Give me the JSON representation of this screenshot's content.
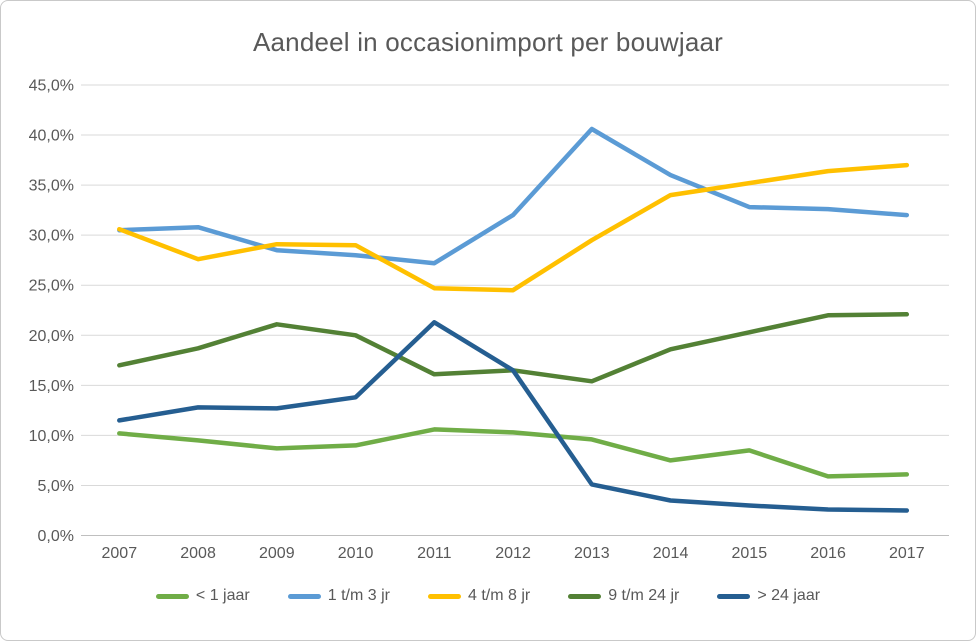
{
  "chart_data": {
    "type": "line",
    "title": "Aandeel in occasionimport per bouwjaar",
    "xlabel": "",
    "ylabel": "",
    "categories": [
      "2007",
      "2008",
      "2009",
      "2010",
      "2011",
      "2012",
      "2013",
      "2014",
      "2015",
      "2016",
      "2017"
    ],
    "series": [
      {
        "key": "minder-dan-1-jaar",
        "name": "< 1 jaar",
        "color": "#70AD47",
        "values": [
          10.2,
          9.5,
          8.7,
          9.0,
          10.6,
          10.3,
          9.6,
          7.5,
          8.5,
          5.9,
          6.1
        ]
      },
      {
        "key": "1-tm-3-jr",
        "name": "1 t/m 3 jr",
        "color": "#5B9BD5",
        "values": [
          30.5,
          30.8,
          28.5,
          28.0,
          27.2,
          32.0,
          40.6,
          36.0,
          32.8,
          32.6,
          32.0
        ]
      },
      {
        "key": "4-tm-8-jr",
        "name": "4 t/m 8 jr",
        "color": "#FFC000",
        "values": [
          30.6,
          27.6,
          29.1,
          29.0,
          24.7,
          24.5,
          29.5,
          34.0,
          35.2,
          36.4,
          37.0
        ]
      },
      {
        "key": "9-tm-24-jr",
        "name": "9 t/m 24 jr",
        "color": "#538135",
        "values": [
          17.0,
          18.7,
          21.1,
          20.0,
          16.1,
          16.5,
          15.4,
          18.6,
          20.3,
          22.0,
          22.1
        ]
      },
      {
        "key": "meer-dan-24-jaar",
        "name": "> 24 jaar",
        "color": "#255E91",
        "values": [
          11.5,
          12.8,
          12.7,
          13.8,
          21.3,
          16.5,
          5.1,
          3.5,
          3.0,
          2.6,
          2.5
        ]
      }
    ],
    "ylim": [
      0,
      45
    ],
    "ytick_step": 5,
    "ytick_labels": [
      "0,0%",
      "5,0%",
      "10,0%",
      "15,0%",
      "20,0%",
      "25,0%",
      "30,0%",
      "35,0%",
      "40,0%",
      "45,0%"
    ],
    "grid": true,
    "legend_position": "bottom",
    "colors": {
      "title_text": "#595959",
      "axis_text": "#595959",
      "gridline": "#D9D9D9",
      "axis_line": "#BFBFBF"
    }
  }
}
